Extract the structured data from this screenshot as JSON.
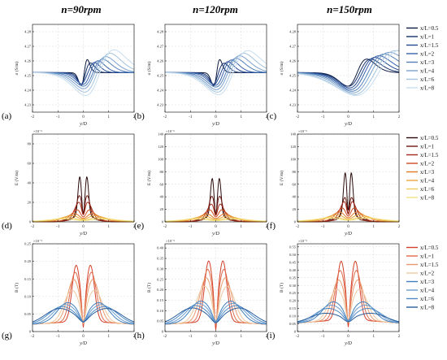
{
  "figure": {
    "column_titles": [
      "n=90rpm",
      "n=120rpm",
      "n=150rpm"
    ],
    "colors": {
      "blues": [
        "#0b1a3f",
        "#14306c",
        "#23488f",
        "#3762a8",
        "#5380b9",
        "#7aa1cc",
        "#a2c2de",
        "#c7def0"
      ],
      "reds": [
        "#2a0a0a",
        "#6b1710",
        "#a32a1a",
        "#cf4a22",
        "#e07a26",
        "#e9a63b",
        "#efcb57",
        "#f3e27e"
      ],
      "mixed": [
        "#d4402a",
        "#e06a4a",
        "#e89a6e",
        "#edc9a2",
        "#3f7fbf",
        "#6b9dce",
        "#4f8ac6",
        "#2a5f9e"
      ]
    }
  },
  "chart_data": [
    {
      "id": "a",
      "row": 0,
      "col": 0,
      "panel_label": "(a)",
      "type": "line",
      "xlabel": "y/D",
      "ylabel": "σ (S/m)",
      "multiplier": "",
      "xlim": [
        -2,
        2
      ],
      "ylim": [
        4.225,
        4.285
      ],
      "xticks": [
        -2,
        -1,
        0,
        1,
        2
      ],
      "yticks": [
        4.23,
        4.24,
        4.25,
        4.26,
        4.27,
        4.28
      ],
      "ytick_labels": [
        "4.23",
        "4.24",
        "4.25",
        "4.26",
        "4.27",
        "4.28"
      ],
      "family": "sigma",
      "palette": "blues",
      "legend": [],
      "series": [
        {
          "label": "x/L=0.5",
          "base": 4.252,
          "amp": 0.012,
          "center": 0.05,
          "width": 0.12,
          "spike": 0.004
        },
        {
          "label": "x/L=1",
          "base": 4.252,
          "amp": 0.011,
          "center": 0.12,
          "width": 0.18,
          "spike": 0.003
        },
        {
          "label": "x/L=1.5",
          "base": 4.252,
          "amp": 0.012,
          "center": 0.2,
          "width": 0.24,
          "spike": 0.002
        },
        {
          "label": "x/L=2",
          "base": 4.252,
          "amp": 0.014,
          "center": 0.28,
          "width": 0.3,
          "spike": 0
        },
        {
          "label": "x/L=3",
          "base": 4.252,
          "amp": 0.016,
          "center": 0.38,
          "width": 0.38,
          "spike": 0
        },
        {
          "label": "x/L=4",
          "base": 4.252,
          "amp": 0.019,
          "center": 0.45,
          "width": 0.44,
          "spike": 0
        },
        {
          "label": "x/L=6",
          "base": 4.252,
          "amp": 0.023,
          "center": 0.55,
          "width": 0.5,
          "spike": 0
        },
        {
          "label": "x/L=8",
          "base": 4.252,
          "amp": 0.027,
          "center": 0.65,
          "width": 0.56,
          "spike": 0
        }
      ]
    },
    {
      "id": "b",
      "row": 0,
      "col": 1,
      "panel_label": "(b)",
      "type": "line",
      "xlabel": "y/D",
      "ylabel": "σ (S/m)",
      "multiplier": "",
      "xlim": [
        -2,
        2
      ],
      "ylim": [
        4.225,
        4.285
      ],
      "xticks": [
        -2,
        -1,
        0,
        1,
        2
      ],
      "yticks": [
        4.23,
        4.24,
        4.25,
        4.26,
        4.27,
        4.28
      ],
      "ytick_labels": [
        "4.23",
        "4.24",
        "4.25",
        "4.26",
        "4.27",
        "4.28"
      ],
      "family": "sigma",
      "palette": "blues",
      "legend": [],
      "series": [
        {
          "label": "x/L=0.5",
          "base": 4.252,
          "amp": 0.012,
          "center": 0.05,
          "width": 0.12,
          "spike": 0.004
        },
        {
          "label": "x/L=1",
          "base": 4.252,
          "amp": 0.011,
          "center": 0.14,
          "width": 0.2,
          "spike": 0.003
        },
        {
          "label": "x/L=1.5",
          "base": 4.252,
          "amp": 0.013,
          "center": 0.22,
          "width": 0.26,
          "spike": 0.002
        },
        {
          "label": "x/L=2",
          "base": 4.252,
          "amp": 0.015,
          "center": 0.3,
          "width": 0.32,
          "spike": 0
        },
        {
          "label": "x/L=3",
          "base": 4.252,
          "amp": 0.017,
          "center": 0.4,
          "width": 0.4,
          "spike": 0
        },
        {
          "label": "x/L=4",
          "base": 4.252,
          "amp": 0.02,
          "center": 0.48,
          "width": 0.46,
          "spike": 0
        },
        {
          "label": "x/L=6",
          "base": 4.252,
          "amp": 0.023,
          "center": 0.58,
          "width": 0.52,
          "spike": 0
        },
        {
          "label": "x/L=8",
          "base": 4.252,
          "amp": 0.026,
          "center": 0.68,
          "width": 0.58,
          "spike": 0
        }
      ]
    },
    {
      "id": "c",
      "row": 0,
      "col": 2,
      "panel_label": "(c)",
      "type": "line",
      "xlabel": "y/D",
      "ylabel": "σ (S/m)",
      "multiplier": "",
      "xlim": [
        -2,
        2
      ],
      "ylim": [
        4.225,
        4.285
      ],
      "xticks": [
        -2,
        -1,
        0,
        1,
        2
      ],
      "yticks": [
        4.23,
        4.24,
        4.25,
        4.26,
        4.27,
        4.28
      ],
      "ytick_labels": [
        "4.23",
        "4.24",
        "4.25",
        "4.26",
        "4.27",
        "4.28"
      ],
      "family": "sigma",
      "palette": "blues",
      "legend": [
        "x/L=0.5",
        "x/L=1",
        "x/L=1.5",
        "x/L=2",
        "x/L=3",
        "x/L=4",
        "x/L=6",
        "x/L=8"
      ],
      "series": [
        {
          "label": "x/L=0.5",
          "base": 4.252,
          "amp": 0.016,
          "center": 0.35,
          "width": 0.38,
          "spike": 0
        },
        {
          "label": "x/L=1",
          "base": 4.252,
          "amp": 0.016,
          "center": 0.45,
          "width": 0.44,
          "spike": 0
        },
        {
          "label": "x/L=1.5",
          "base": 4.252,
          "amp": 0.018,
          "center": 0.55,
          "width": 0.5,
          "spike": 0
        },
        {
          "label": "x/L=2",
          "base": 4.252,
          "amp": 0.02,
          "center": 0.65,
          "width": 0.56,
          "spike": 0
        },
        {
          "label": "x/L=3",
          "base": 4.252,
          "amp": 0.022,
          "center": 0.78,
          "width": 0.64,
          "spike": 0
        },
        {
          "label": "x/L=4",
          "base": 4.252,
          "amp": 0.024,
          "center": 0.9,
          "width": 0.72,
          "spike": 0
        },
        {
          "label": "x/L=6",
          "base": 4.252,
          "amp": 0.026,
          "center": 1.05,
          "width": 0.82,
          "spike": 0
        },
        {
          "label": "x/L=8",
          "base": 4.252,
          "amp": 0.027,
          "center": 1.2,
          "width": 0.9,
          "spike": 0
        }
      ]
    },
    {
      "id": "d",
      "row": 1,
      "col": 0,
      "panel_label": "(d)",
      "type": "line",
      "xlabel": "y/D",
      "ylabel": "E (V/m)",
      "multiplier": "×10⁻⁶",
      "xlim": [
        -2,
        2
      ],
      "ylim": [
        0,
        90
      ],
      "xticks": [
        -2,
        -1,
        0,
        1,
        2
      ],
      "yticks": [
        0,
        20,
        40,
        60,
        80
      ],
      "ytick_labels": [
        "0",
        "20",
        "40",
        "60",
        "80"
      ],
      "family": "efield",
      "palette": "reds",
      "legend": [],
      "series": [
        {
          "label": "x/L=0.5",
          "base": 0,
          "amp": 80,
          "center": 0.14,
          "width": 0.07,
          "spike": 0
        },
        {
          "label": "x/L=1",
          "base": 0,
          "amp": 46,
          "center": 0.16,
          "width": 0.11,
          "spike": 0
        },
        {
          "label": "x/L=1.5",
          "base": 0,
          "amp": 32,
          "center": 0.18,
          "width": 0.18,
          "spike": 0
        },
        {
          "label": "x/L=2",
          "base": 0,
          "amp": 18,
          "center": 0.2,
          "width": 0.3,
          "spike": 0
        },
        {
          "label": "x/L=3",
          "base": 0,
          "amp": 12,
          "center": 0.24,
          "width": 0.45,
          "spike": 0
        },
        {
          "label": "x/L=4",
          "base": 0,
          "amp": 9,
          "center": 0.28,
          "width": 0.6,
          "spike": 0
        },
        {
          "label": "x/L=6",
          "base": 0,
          "amp": 6,
          "center": 0.3,
          "width": 0.8,
          "spike": 0
        },
        {
          "label": "x/L=8",
          "base": 0,
          "amp": 4,
          "center": 0.3,
          "width": 1.0,
          "spike": 0
        }
      ]
    },
    {
      "id": "e",
      "row": 1,
      "col": 1,
      "panel_label": "(e)",
      "type": "line",
      "xlabel": "y/D",
      "ylabel": "E (V/m)",
      "multiplier": "×10⁻⁶",
      "xlim": [
        -2,
        2
      ],
      "ylim": [
        0,
        140
      ],
      "xticks": [
        -2,
        -1,
        0,
        1,
        2
      ],
      "yticks": [
        0,
        20,
        40,
        60,
        80,
        100,
        120,
        140
      ],
      "ytick_labels": [
        "0",
        "20",
        "40",
        "60",
        "80",
        "100",
        "120",
        "140"
      ],
      "family": "efield",
      "palette": "reds",
      "legend": [],
      "series": [
        {
          "label": "x/L=0.5",
          "base": 0,
          "amp": 120,
          "center": 0.14,
          "width": 0.07,
          "spike": 0
        },
        {
          "label": "x/L=1",
          "base": 0,
          "amp": 70,
          "center": 0.16,
          "width": 0.11,
          "spike": 0
        },
        {
          "label": "x/L=1.5",
          "base": 0,
          "amp": 45,
          "center": 0.18,
          "width": 0.18,
          "spike": 0
        },
        {
          "label": "x/L=2",
          "base": 0,
          "amp": 28,
          "center": 0.2,
          "width": 0.3,
          "spike": 0
        },
        {
          "label": "x/L=3",
          "base": 0,
          "amp": 18,
          "center": 0.24,
          "width": 0.45,
          "spike": 0
        },
        {
          "label": "x/L=4",
          "base": 0,
          "amp": 13,
          "center": 0.28,
          "width": 0.6,
          "spike": 0
        },
        {
          "label": "x/L=6",
          "base": 0,
          "amp": 9,
          "center": 0.3,
          "width": 0.8,
          "spike": 0
        },
        {
          "label": "x/L=8",
          "base": 0,
          "amp": 6,
          "center": 0.3,
          "width": 1.0,
          "spike": 0
        }
      ]
    },
    {
      "id": "f",
      "row": 1,
      "col": 2,
      "panel_label": "(f)",
      "type": "line",
      "xlabel": "y/D",
      "ylabel": "E (V/m)",
      "multiplier": "×10⁻⁶",
      "xlim": [
        -2,
        2
      ],
      "ylim": [
        0,
        140
      ],
      "xticks": [
        -2,
        -1,
        0,
        1,
        2
      ],
      "yticks": [
        0,
        20,
        40,
        60,
        80,
        100,
        120,
        140
      ],
      "ytick_labels": [
        "0",
        "20",
        "40",
        "60",
        "80",
        "100",
        "120",
        "140"
      ],
      "family": "efield",
      "palette": "reds",
      "legend": [
        "x/L=0.5",
        "x/L=1",
        "x/L=1.5",
        "x/L=2",
        "x/L=3",
        "x/L=4",
        "x/L=6",
        "x/L=8"
      ],
      "series": [
        {
          "label": "x/L=0.5",
          "base": 0,
          "amp": 135,
          "center": 0.12,
          "width": 0.07,
          "spike": 0
        },
        {
          "label": "x/L=1",
          "base": 0,
          "amp": 65,
          "center": 0.14,
          "width": 0.11,
          "spike": 0
        },
        {
          "label": "x/L=1.5",
          "base": 0,
          "amp": 50,
          "center": 0.16,
          "width": 0.18,
          "spike": 0
        },
        {
          "label": "x/L=2",
          "base": 0,
          "amp": 32,
          "center": 0.18,
          "width": 0.3,
          "spike": 0
        },
        {
          "label": "x/L=3",
          "base": 0,
          "amp": 22,
          "center": 0.22,
          "width": 0.45,
          "spike": 0
        },
        {
          "label": "x/L=4",
          "base": 0,
          "amp": 16,
          "center": 0.26,
          "width": 0.6,
          "spike": 0
        },
        {
          "label": "x/L=6",
          "base": 0,
          "amp": 11,
          "center": 0.28,
          "width": 0.8,
          "spike": 0
        },
        {
          "label": "x/L=8",
          "base": 0,
          "amp": 8,
          "center": 0.3,
          "width": 1.0,
          "spike": 0
        }
      ]
    },
    {
      "id": "g",
      "row": 2,
      "col": 0,
      "panel_label": "(g)",
      "type": "line",
      "xlabel": "y/D",
      "ylabel": "B (T)",
      "multiplier": "×10⁻⁵",
      "xlim": [
        -2,
        2
      ],
      "ylim": [
        0,
        0.25
      ],
      "xticks": [
        -2,
        -1,
        0,
        1,
        2
      ],
      "yticks": [
        0,
        0.05,
        0.1,
        0.15,
        0.2,
        0.25
      ],
      "ytick_labels": [
        "0",
        "0.05",
        "0.10",
        "0.15",
        "0.20",
        "0.25"
      ],
      "family": "bfield",
      "palette": "mixed",
      "legend": [],
      "series": [
        {
          "label": "x/L=0.5",
          "base": 0.03,
          "amp": 0.19,
          "center": 0.28,
          "width": 0.16,
          "spike": 0.15
        },
        {
          "label": "x/L=1",
          "base": 0.03,
          "amp": 0.17,
          "center": 0.32,
          "width": 0.2,
          "spike": 0.14
        },
        {
          "label": "x/L=1.5",
          "base": 0.03,
          "amp": 0.15,
          "center": 0.38,
          "width": 0.25,
          "spike": 0.12
        },
        {
          "label": "x/L=2",
          "base": 0.03,
          "amp": 0.12,
          "center": 0.45,
          "width": 0.3,
          "spike": 0.1
        },
        {
          "label": "x/L=3",
          "base": 0.03,
          "amp": 0.085,
          "center": 0.62,
          "width": 0.4,
          "spike": 0.055
        },
        {
          "label": "x/L=4",
          "base": 0.03,
          "amp": 0.08,
          "center": 0.72,
          "width": 0.45,
          "spike": 0.05
        },
        {
          "label": "x/L=6",
          "base": 0.03,
          "amp": 0.075,
          "center": 0.85,
          "width": 0.5,
          "spike": 0.04
        },
        {
          "label": "x/L=8",
          "base": 0.03,
          "amp": 0.07,
          "center": 0.95,
          "width": 0.55,
          "spike": 0.035
        }
      ]
    },
    {
      "id": "h",
      "row": 2,
      "col": 1,
      "panel_label": "(h)",
      "type": "line",
      "xlabel": "y/D",
      "ylabel": "B (T)",
      "multiplier": "×10⁻⁵",
      "xlim": [
        -2,
        2
      ],
      "ylim": [
        0,
        0.42
      ],
      "xticks": [
        -2,
        -1,
        0,
        1,
        2
      ],
      "yticks": [
        0,
        0.05,
        0.1,
        0.15,
        0.2,
        0.25,
        0.3,
        0.35,
        0.4
      ],
      "ytick_labels": [
        "0",
        "0.05",
        "0.10",
        "0.15",
        "0.20",
        "0.25",
        "0.30",
        "0.35",
        "0.40"
      ],
      "family": "bfield",
      "palette": "mixed",
      "legend": [],
      "series": [
        {
          "label": "x/L=0.5",
          "base": 0.05,
          "amp": 0.34,
          "center": 0.28,
          "width": 0.16,
          "spike": 0.3
        },
        {
          "label": "x/L=1",
          "base": 0.05,
          "amp": 0.3,
          "center": 0.32,
          "width": 0.2,
          "spike": 0.26
        },
        {
          "label": "x/L=1.5",
          "base": 0.05,
          "amp": 0.26,
          "center": 0.38,
          "width": 0.25,
          "spike": 0.22
        },
        {
          "label": "x/L=2",
          "base": 0.05,
          "amp": 0.22,
          "center": 0.45,
          "width": 0.3,
          "spike": 0.18
        },
        {
          "label": "x/L=3",
          "base": 0.05,
          "amp": 0.15,
          "center": 0.6,
          "width": 0.4,
          "spike": 0.1
        },
        {
          "label": "x/L=4",
          "base": 0.05,
          "amp": 0.14,
          "center": 0.7,
          "width": 0.45,
          "spike": 0.09
        },
        {
          "label": "x/L=6",
          "base": 0.05,
          "amp": 0.13,
          "center": 0.82,
          "width": 0.5,
          "spike": 0.08
        },
        {
          "label": "x/L=8",
          "base": 0.05,
          "amp": 0.12,
          "center": 0.95,
          "width": 0.55,
          "spike": 0.07
        }
      ]
    },
    {
      "id": "i",
      "row": 2,
      "col": 2,
      "panel_label": "(i)",
      "type": "line",
      "xlabel": "y/D",
      "ylabel": "B (T)",
      "multiplier": "×10⁻⁵",
      "xlim": [
        -2,
        2
      ],
      "ylim": [
        0,
        0.57
      ],
      "xticks": [
        -2,
        -1,
        0,
        1,
        2
      ],
      "yticks": [
        0,
        0.05,
        0.1,
        0.15,
        0.2,
        0.25,
        0.3,
        0.35,
        0.4,
        0.45,
        0.5,
        0.55
      ],
      "ytick_labels": [
        "0",
        "0.05",
        "0.10",
        "0.15",
        "0.20",
        "0.25",
        "0.30",
        "0.35",
        "0.40",
        "0.45",
        "0.50",
        "0.55"
      ],
      "family": "bfield",
      "palette": "mixed",
      "legend": [
        "x/L=0.5",
        "x/L=1",
        "x/L=1.5",
        "x/L=2",
        "x/L=3",
        "x/L=4",
        "x/L=6",
        "x/L=8"
      ],
      "series": [
        {
          "label": "x/L=0.5",
          "base": 0.08,
          "amp": 0.46,
          "center": 0.28,
          "width": 0.16,
          "spike": 0.38
        },
        {
          "label": "x/L=1",
          "base": 0.08,
          "amp": 0.4,
          "center": 0.32,
          "width": 0.2,
          "spike": 0.33
        },
        {
          "label": "x/L=1.5",
          "base": 0.08,
          "amp": 0.34,
          "center": 0.38,
          "width": 0.25,
          "spike": 0.28
        },
        {
          "label": "x/L=2",
          "base": 0.08,
          "amp": 0.28,
          "center": 0.45,
          "width": 0.3,
          "spike": 0.22
        },
        {
          "label": "x/L=3",
          "base": 0.08,
          "amp": 0.2,
          "center": 0.6,
          "width": 0.4,
          "spike": 0.14
        },
        {
          "label": "x/L=4",
          "base": 0.08,
          "amp": 0.18,
          "center": 0.7,
          "width": 0.45,
          "spike": 0.12
        },
        {
          "label": "x/L=6",
          "base": 0.08,
          "amp": 0.16,
          "center": 0.82,
          "width": 0.5,
          "spike": 0.1
        },
        {
          "label": "x/L=8",
          "base": 0.08,
          "amp": 0.13,
          "center": 0.95,
          "width": 0.55,
          "spike": 0.08
        }
      ]
    }
  ]
}
